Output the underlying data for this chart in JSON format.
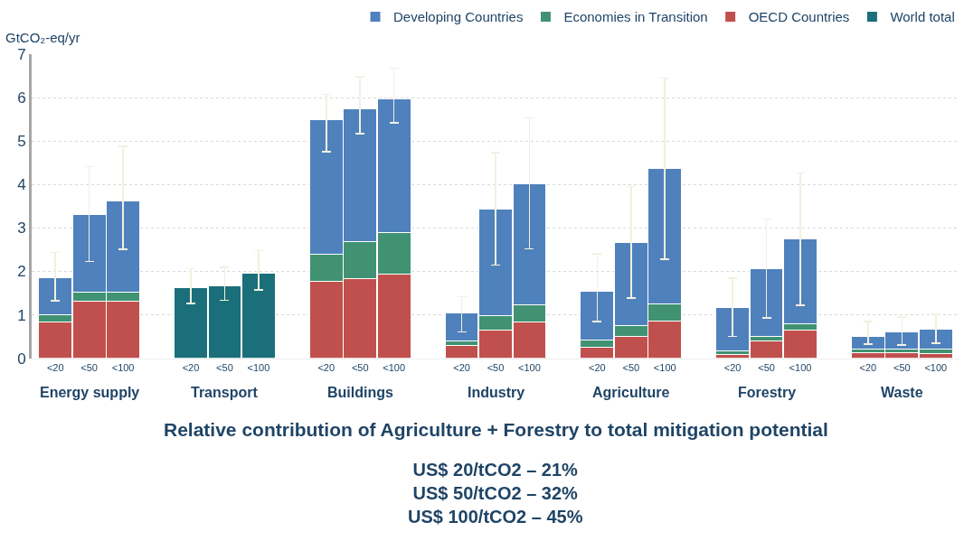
{
  "chart_data": {
    "type": "bar",
    "stacked": true,
    "title": "Relative contribution of Agriculture + Forestry to total mitigation potential",
    "subtitle": "US$ 20/tCO2 – 21%\nUS$ 50/tCO2 – 32%\nUS$ 100/tCO2 – 45%",
    "ylabel": "GtCO₂-eq/yr",
    "categories": [
      "<20",
      "<50",
      "<100",
      null,
      "<20",
      "<50",
      "<100",
      null,
      "<20",
      "<50",
      "<100",
      null,
      "<20",
      "<50",
      "<100",
      null,
      "<20",
      "<50",
      "<100",
      null,
      "<20",
      "<50",
      "<100",
      null,
      "<20",
      "<50",
      "<100"
    ],
    "annotations": [
      "Energy supply",
      "Transport",
      "Buildings",
      "Industry",
      "Agriculture",
      "Forestry",
      "Waste"
    ],
    "series": [
      {
        "name": "World total",
        "color": "#1b6f7a",
        "values": [
          null,
          null,
          null,
          null,
          1.62,
          1.66,
          1.95,
          null,
          null,
          null,
          null,
          null,
          null,
          null,
          null,
          null,
          null,
          null,
          null,
          null,
          null,
          null,
          null,
          null,
          null,
          null,
          null
        ],
        "errors": [
          null,
          null,
          null,
          null,
          [
            1.26,
            2.06
          ],
          [
            1.33,
            2.09
          ],
          [
            1.57,
            2.48
          ],
          null,
          null,
          null,
          null,
          null,
          null,
          null,
          null,
          null,
          null,
          null,
          null,
          null,
          null,
          null,
          null,
          null,
          null,
          null,
          null
        ]
      },
      {
        "name": "OECD Countries",
        "color": "#c0504d",
        "values": [
          0.84,
          1.31,
          1.31,
          null,
          null,
          null,
          null,
          null,
          1.78,
          1.83,
          1.94,
          null,
          0.29,
          0.65,
          0.84,
          null,
          0.25,
          0.5,
          0.85,
          null,
          0.09,
          0.4,
          0.64,
          null,
          0.12,
          0.12,
          0.1
        ]
      },
      {
        "name": "Economies in Transition",
        "color": "#409272",
        "values": [
          0.16,
          0.22,
          0.22,
          null,
          null,
          null,
          null,
          null,
          0.62,
          0.85,
          0.96,
          null,
          0.11,
          0.34,
          0.4,
          null,
          0.17,
          0.25,
          0.41,
          null,
          0.07,
          0.1,
          0.15,
          null,
          0.09,
          0.09,
          0.11
        ]
      },
      {
        "name": "Developing Countries",
        "color": "#4f81bd",
        "values": [
          0.85,
          1.77,
          2.1,
          null,
          null,
          null,
          null,
          null,
          3.1,
          3.07,
          3.07,
          null,
          0.64,
          2.44,
          2.78,
          null,
          1.13,
          1.91,
          3.1,
          null,
          1.0,
          1.56,
          1.95,
          null,
          0.29,
          0.4,
          0.45
        ],
        "errors": [
          [
            1.32,
            2.44
          ],
          [
            2.23,
            4.41
          ],
          [
            2.51,
            4.88
          ],
          null,
          null,
          null,
          null,
          null,
          [
            4.75,
            6.07
          ],
          [
            5.17,
            6.48
          ],
          [
            5.42,
            6.68
          ],
          null,
          [
            0.61,
            1.42
          ],
          [
            2.14,
            4.73
          ],
          [
            2.52,
            5.53
          ],
          null,
          [
            0.85,
            2.4
          ],
          [
            1.39,
            3.95
          ],
          [
            2.28,
            6.45
          ],
          null,
          [
            0.5,
            1.84
          ],
          [
            0.93,
            3.21
          ],
          [
            1.22,
            4.27
          ],
          null,
          [
            0.33,
            0.85
          ],
          [
            0.3,
            0.95
          ],
          [
            0.35,
            1.01
          ]
        ]
      }
    ],
    "ylim": [
      0,
      7
    ],
    "yticks": [
      0,
      1,
      2,
      3,
      4,
      5,
      6,
      7
    ],
    "grid": "y",
    "legend": "top right"
  }
}
